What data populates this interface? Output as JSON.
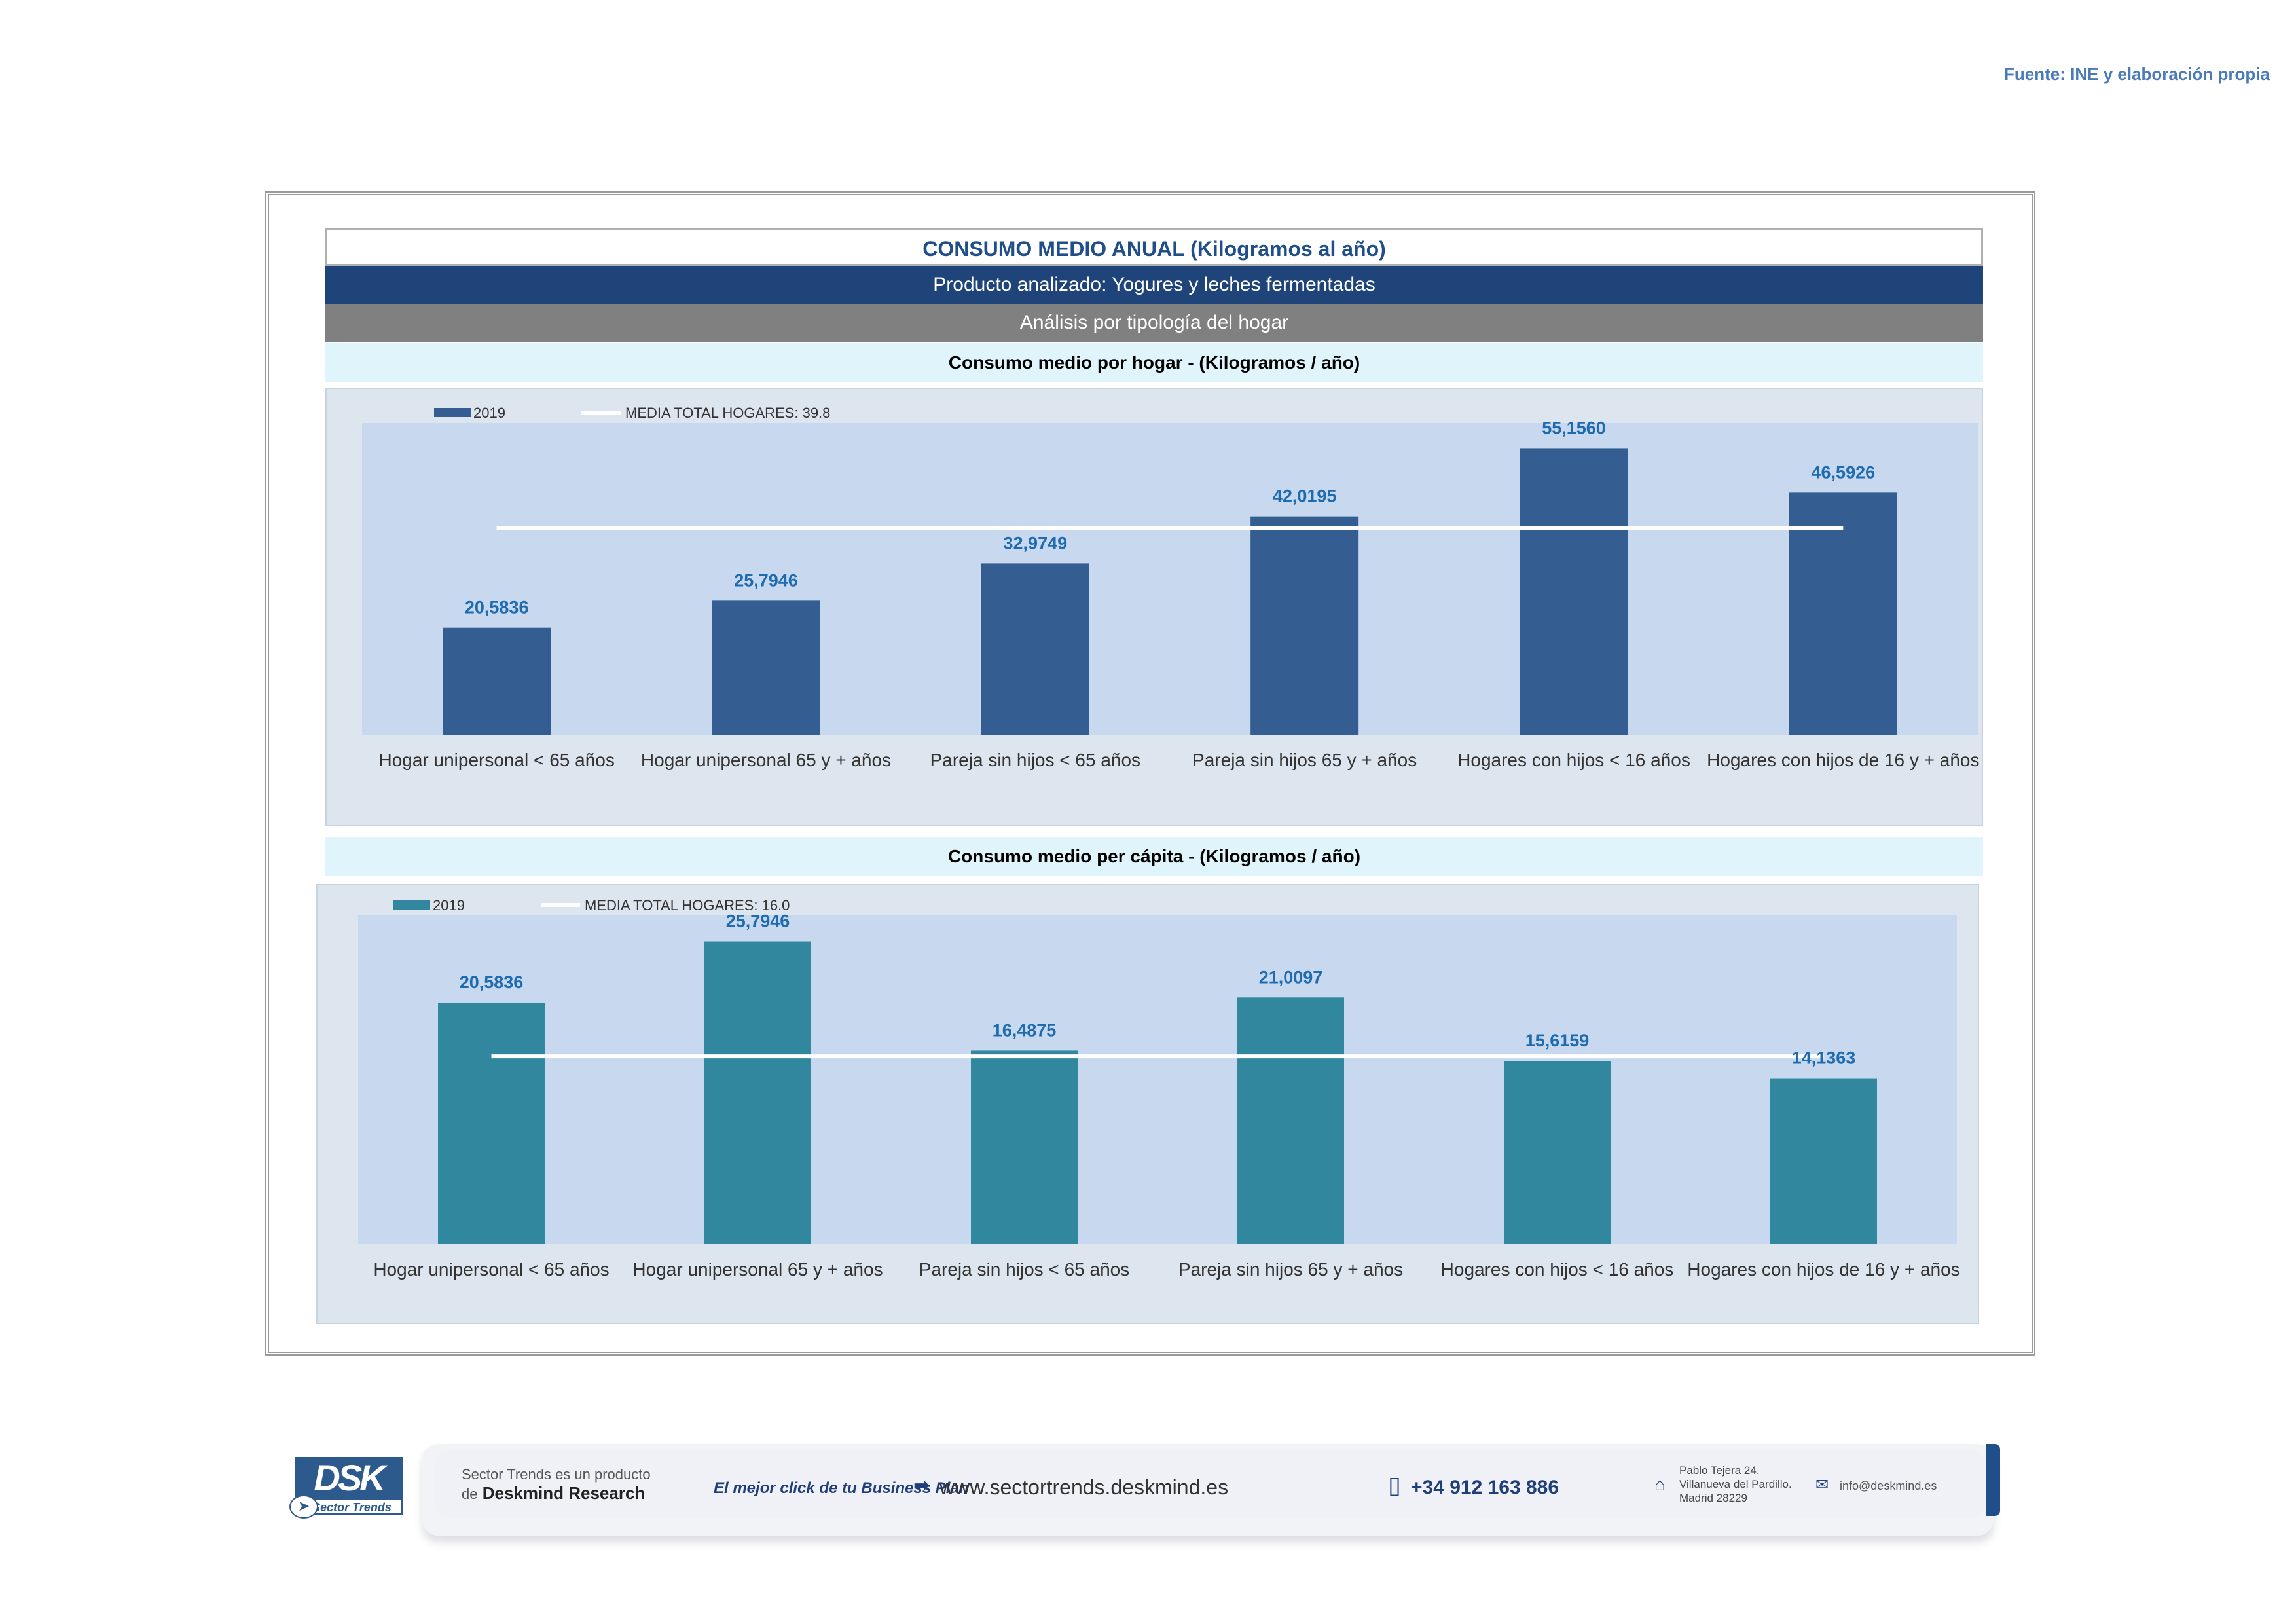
{
  "source_note": "Fuente: INE y elaboración propia",
  "header": {
    "title": "CONSUMO MEDIO ANUAL (Kilogramos al año)",
    "product": "Producto analizado: Yogures y leches fermentadas",
    "analysis": "Análisis por tipología del hogar"
  },
  "chart_data": [
    {
      "type": "bar",
      "title": "Consumo medio por hogar -  (Kilogramos / año)",
      "categories": [
        "Hogar unipersonal < 65 años",
        "Hogar unipersonal  65 y + años",
        "Pareja sin hijos < 65 años",
        "Pareja sin hijos 65 y + años",
        "Hogares con hijos < 16 años",
        "Hogares con hijos de 16 y + años"
      ],
      "series": [
        {
          "name": "2019",
          "values": [
            20.5836,
            25.7946,
            32.9749,
            42.0195,
            55.156,
            46.5926
          ],
          "labels": [
            "20,5836",
            "25,7946",
            "32,9749",
            "42,0195",
            "55,1560",
            "46,5926"
          ],
          "color": "#345e91"
        }
      ],
      "reference_line": {
        "name": "MEDIA TOTAL  HOGARES:   39.8",
        "value": 39.8,
        "color": "#ffffff"
      },
      "ylim": [
        0,
        60
      ],
      "grid": false,
      "legend": "top-left",
      "label_color": "#1f6bb0"
    },
    {
      "type": "bar",
      "title": "Consumo medio per cápita -  (Kilogramos / año)",
      "categories": [
        "Hogar unipersonal < 65 años",
        "Hogar unipersonal  65 y + años",
        "Pareja sin hijos < 65 años",
        "Pareja sin hijos 65 y + años",
        "Hogares con hijos < 16 años",
        "Hogares con hijos de 16 y + años"
      ],
      "series": [
        {
          "name": "2019",
          "values": [
            20.5836,
            25.7946,
            16.4875,
            21.0097,
            15.6159,
            14.1363
          ],
          "labels": [
            "20,5836",
            "25,7946",
            "16,4875",
            "21,0097",
            "15,6159",
            "14,1363"
          ],
          "color": "#31879d"
        }
      ],
      "reference_line": {
        "name": "MEDIA TOTAL  HOGARES:   16.0",
        "value": 16.0,
        "color": "#ffffff"
      },
      "ylim": [
        0,
        28
      ],
      "grid": false,
      "legend": "top-left",
      "label_color": "#1f6bb0"
    }
  ],
  "footer": {
    "line1": "Sector Trends es un producto",
    "line2_pre": "de",
    "line2_brand": "Deskmind Research",
    "slogan": "El mejor click de tu Business Plan",
    "website": "www.sectortrends.deskmind.es",
    "phone": "+34 912 163 886",
    "address": "Pablo Tejera 24.\nVillanueva del Pardillo.\nMadrid 28229",
    "email": "info@deskmind.es",
    "logo_text": "DSK",
    "logo_sub": "Sector Trends"
  }
}
